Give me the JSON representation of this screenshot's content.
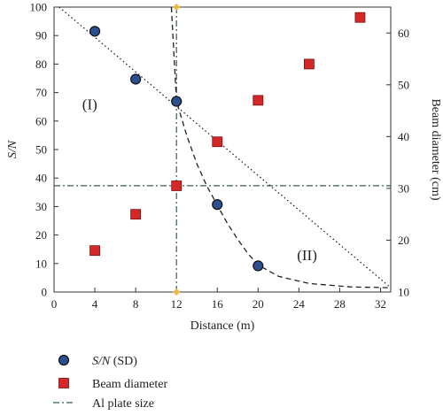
{
  "chart_data": {
    "type": "scatter",
    "xlabel": "Distance (m)",
    "ylabel_left": "S/N",
    "ylabel_right": "Beam diameter (cm)",
    "xlim": [
      0,
      33
    ],
    "ylim_left": [
      0,
      100
    ],
    "ylim_right": [
      10,
      65
    ],
    "x_ticks": [
      0,
      4,
      8,
      12,
      16,
      20,
      24,
      28,
      32
    ],
    "y_ticks_left": [
      0,
      10,
      20,
      30,
      40,
      50,
      60,
      70,
      80,
      90,
      100
    ],
    "y_ticks_right": [
      10,
      20,
      30,
      40,
      50,
      60
    ],
    "grid": false,
    "legend_placement": "below",
    "series": [
      {
        "name": "S/N (SD)",
        "axis": "left",
        "marker": "circle",
        "color": "#2b4f8f",
        "x": [
          4,
          8,
          12,
          16,
          20
        ],
        "y": [
          91.5,
          74.7,
          66.9,
          30.7,
          9.2
        ]
      },
      {
        "name": "Beam diameter",
        "axis": "right",
        "marker": "square",
        "color": "#d62728",
        "x": [
          4,
          8,
          12,
          16,
          20,
          25,
          30
        ],
        "y": [
          18,
          25,
          30.5,
          39,
          47,
          54,
          63
        ]
      }
    ],
    "reference_lines": {
      "name": "Al plate size",
      "vertical_x": 12,
      "horizontal_y_left": 37.3,
      "color": "#2f5f4f"
    },
    "fits": {
      "linear_dotted": [
        [
          0.5,
          100
        ],
        [
          33,
          1.5
        ]
      ],
      "curve_dashed": [
        [
          11.5,
          100
        ],
        [
          12,
          67
        ],
        [
          13,
          55
        ],
        [
          14,
          45
        ],
        [
          15,
          37
        ],
        [
          16,
          30.5
        ],
        [
          17,
          24
        ],
        [
          18,
          18.5
        ],
        [
          19,
          13.5
        ],
        [
          20,
          9.5
        ],
        [
          22,
          5.5
        ],
        [
          25,
          3
        ],
        [
          29,
          1.8
        ],
        [
          33,
          1.5
        ]
      ]
    },
    "annotations": [
      {
        "text": "(I)",
        "x": 3.5,
        "y": 66
      },
      {
        "text": "(II)",
        "x": 24.8,
        "y": 13
      }
    ],
    "axis_marker_color": "#f2b642",
    "legend": {
      "sn_prefix": "S/N",
      "sn_suffix": " (SD)",
      "beam": "Beam diameter",
      "plate": "Al plate size"
    }
  }
}
